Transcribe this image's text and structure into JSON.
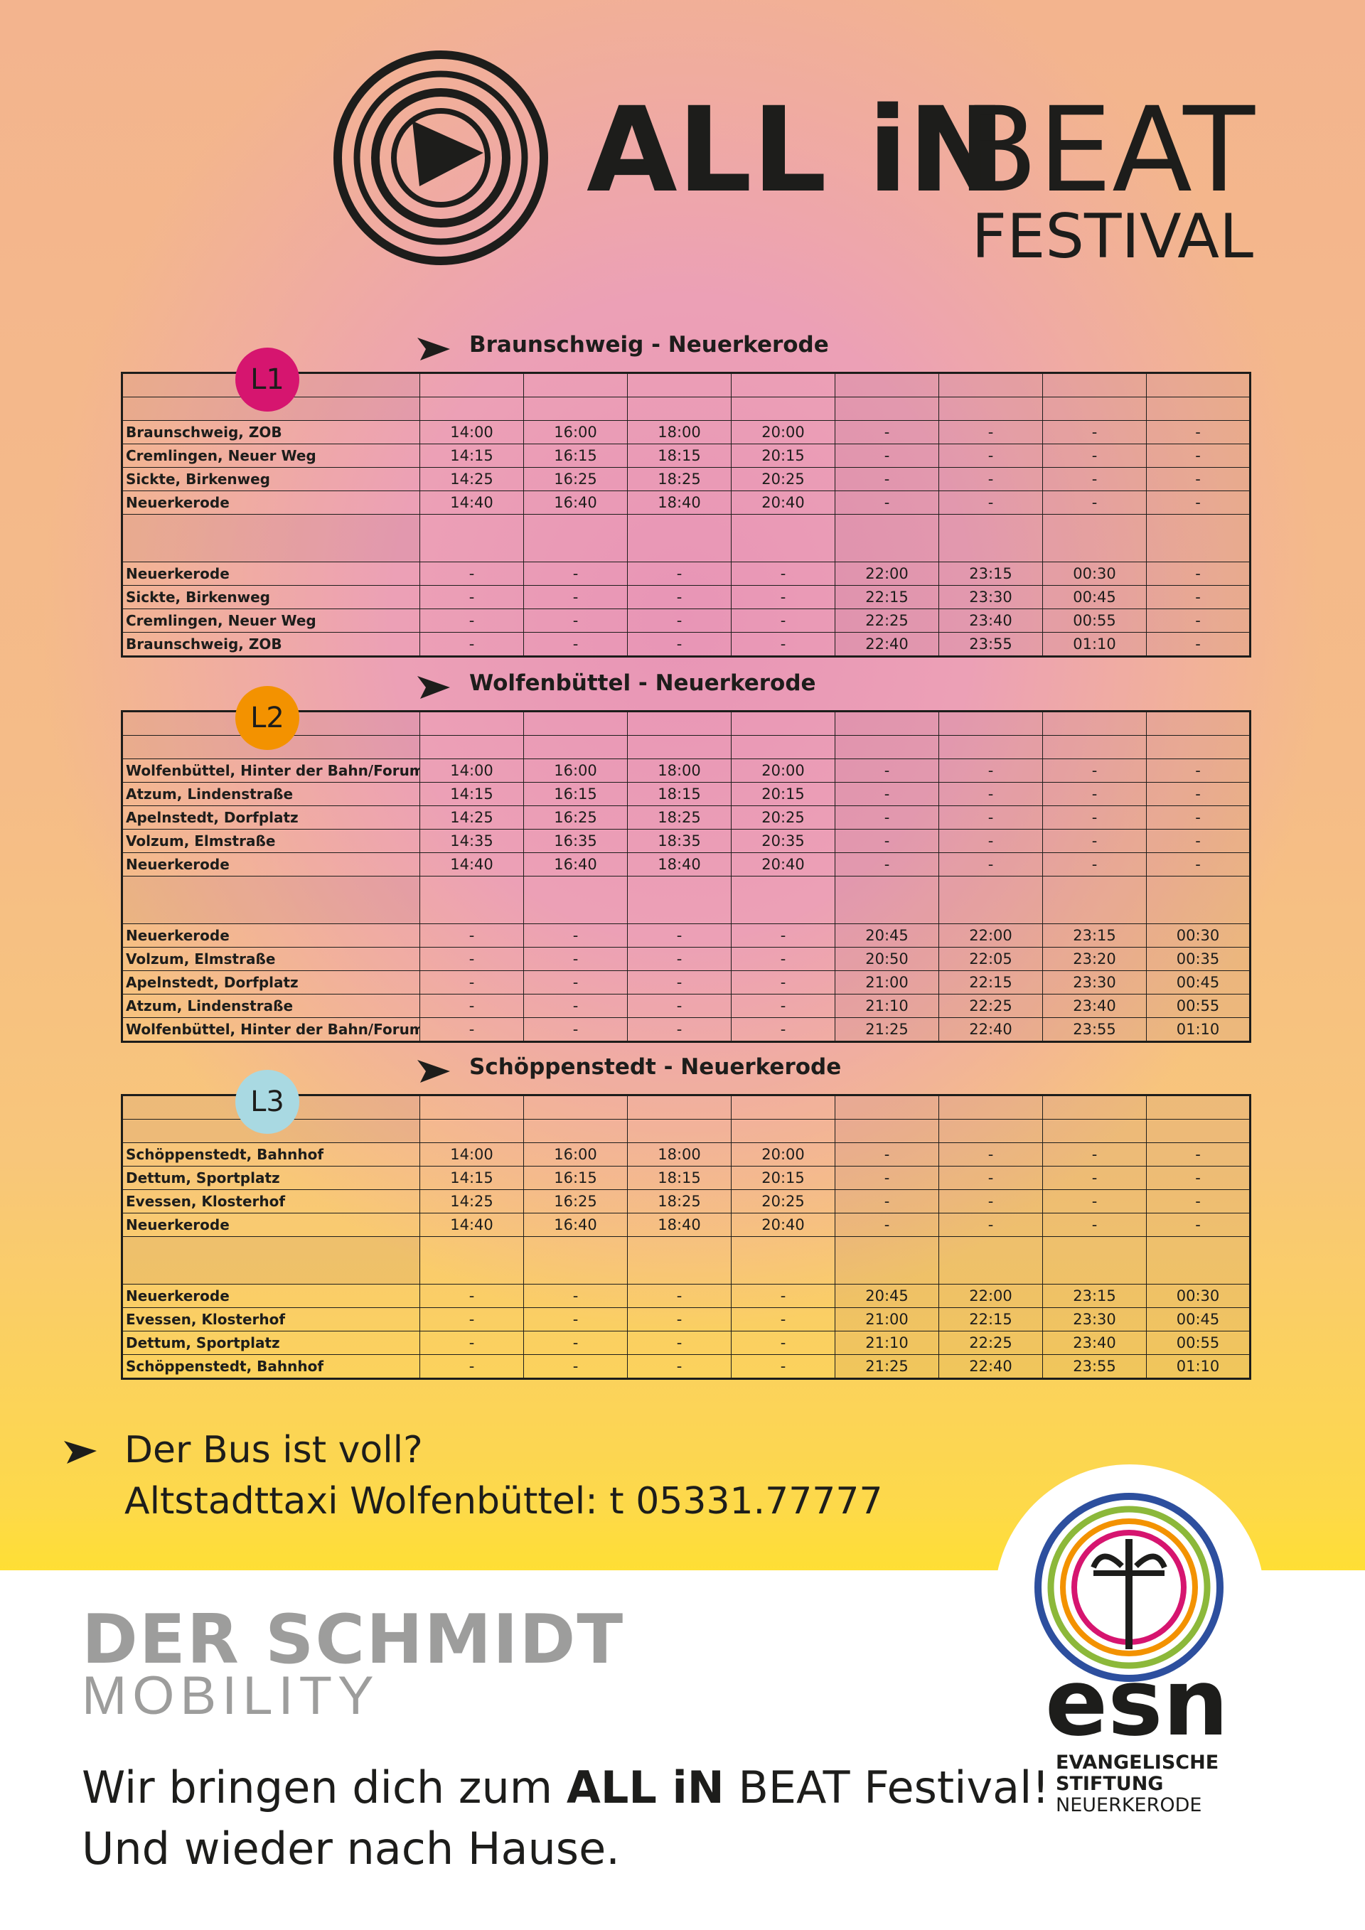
{
  "header": {
    "title_bold": "ALL iN",
    "title_light": "BEAT",
    "subtitle": "FESTIVAL"
  },
  "timetables": [
    {
      "line": "L1",
      "route": "Braunschweig - Neuerkerode",
      "outbound": [
        {
          "stop": "Braunschweig, ZOB",
          "times": [
            "14:00",
            "16:00",
            "18:00",
            "20:00",
            "-",
            "-",
            "-",
            "-"
          ]
        },
        {
          "stop": "Cremlingen, Neuer Weg",
          "times": [
            "14:15",
            "16:15",
            "18:15",
            "20:15",
            "-",
            "-",
            "-",
            "-"
          ]
        },
        {
          "stop": "Sickte, Birkenweg",
          "times": [
            "14:25",
            "16:25",
            "18:25",
            "20:25",
            "-",
            "-",
            "-",
            "-"
          ]
        },
        {
          "stop": "Neuerkerode",
          "times": [
            "14:40",
            "16:40",
            "18:40",
            "20:40",
            "-",
            "-",
            "-",
            "-"
          ]
        }
      ],
      "return": [
        {
          "stop": "Neuerkerode",
          "times": [
            "-",
            "-",
            "-",
            "-",
            "22:00",
            "23:15",
            "00:30",
            "-"
          ]
        },
        {
          "stop": "Sickte, Birkenweg",
          "times": [
            "-",
            "-",
            "-",
            "-",
            "22:15",
            "23:30",
            "00:45",
            "-"
          ]
        },
        {
          "stop": "Cremlingen, Neuer Weg",
          "times": [
            "-",
            "-",
            "-",
            "-",
            "22:25",
            "23:40",
            "00:55",
            "-"
          ]
        },
        {
          "stop": "Braunschweig, ZOB",
          "times": [
            "-",
            "-",
            "-",
            "-",
            "22:40",
            "23:55",
            "01:10",
            "-"
          ]
        }
      ]
    },
    {
      "line": "L2",
      "route": "Wolfenbüttel - Neuerkerode",
      "outbound": [
        {
          "stop": "Wolfenbüttel, Hinter der Bahn/Forum",
          "times": [
            "14:00",
            "16:00",
            "18:00",
            "20:00",
            "-",
            "-",
            "-",
            "-"
          ]
        },
        {
          "stop": "Atzum, Lindenstraße",
          "times": [
            "14:15",
            "16:15",
            "18:15",
            "20:15",
            "-",
            "-",
            "-",
            "-"
          ]
        },
        {
          "stop": "Apelnstedt, Dorfplatz",
          "times": [
            "14:25",
            "16:25",
            "18:25",
            "20:25",
            "-",
            "-",
            "-",
            "-"
          ]
        },
        {
          "stop": "Volzum, Elmstraße",
          "times": [
            "14:35",
            "16:35",
            "18:35",
            "20:35",
            "-",
            "-",
            "-",
            "-"
          ]
        },
        {
          "stop": "Neuerkerode",
          "times": [
            "14:40",
            "16:40",
            "18:40",
            "20:40",
            "-",
            "-",
            "-",
            "-"
          ]
        }
      ],
      "return": [
        {
          "stop": "Neuerkerode",
          "times": [
            "-",
            "-",
            "-",
            "-",
            "20:45",
            "22:00",
            "23:15",
            "00:30"
          ]
        },
        {
          "stop": "Volzum, Elmstraße",
          "times": [
            "-",
            "-",
            "-",
            "-",
            "20:50",
            "22:05",
            "23:20",
            "00:35"
          ]
        },
        {
          "stop": "Apelnstedt, Dorfplatz",
          "times": [
            "-",
            "-",
            "-",
            "-",
            "21:00",
            "22:15",
            "23:30",
            "00:45"
          ]
        },
        {
          "stop": "Atzum, Lindenstraße",
          "times": [
            "-",
            "-",
            "-",
            "-",
            "21:10",
            "22:25",
            "23:40",
            "00:55"
          ]
        },
        {
          "stop": "Wolfenbüttel, Hinter der Bahn/Forum",
          "times": [
            "-",
            "-",
            "-",
            "-",
            "21:25",
            "22:40",
            "23:55",
            "01:10"
          ]
        }
      ]
    },
    {
      "line": "L3",
      "route": "Schöppenstedt - Neuerkerode",
      "outbound": [
        {
          "stop": "Schöppenstedt, Bahnhof",
          "times": [
            "14:00",
            "16:00",
            "18:00",
            "20:00",
            "-",
            "-",
            "-",
            "-"
          ]
        },
        {
          "stop": "Dettum, Sportplatz",
          "times": [
            "14:15",
            "16:15",
            "18:15",
            "20:15",
            "-",
            "-",
            "-",
            "-"
          ]
        },
        {
          "stop": "Evessen, Klosterhof",
          "times": [
            "14:25",
            "16:25",
            "18:25",
            "20:25",
            "-",
            "-",
            "-",
            "-"
          ]
        },
        {
          "stop": "Neuerkerode",
          "times": [
            "14:40",
            "16:40",
            "18:40",
            "20:40",
            "-",
            "-",
            "-",
            "-"
          ]
        }
      ],
      "return": [
        {
          "stop": "Neuerkerode",
          "times": [
            "-",
            "-",
            "-",
            "-",
            "20:45",
            "22:00",
            "23:15",
            "00:30"
          ]
        },
        {
          "stop": "Evessen, Klosterhof",
          "times": [
            "-",
            "-",
            "-",
            "-",
            "21:00",
            "22:15",
            "23:30",
            "00:45"
          ]
        },
        {
          "stop": "Dettum, Sportplatz",
          "times": [
            "-",
            "-",
            "-",
            "-",
            "21:10",
            "22:25",
            "23:40",
            "00:55"
          ]
        },
        {
          "stop": "Schöppenstedt, Bahnhof",
          "times": [
            "-",
            "-",
            "-",
            "-",
            "21:25",
            "22:40",
            "23:55",
            "01:10"
          ]
        }
      ]
    }
  ],
  "notice": {
    "line1": "Der Bus ist voll?",
    "line2": "Altstadttaxi Wolfenbüttel: t 05331.77777"
  },
  "sponsor": {
    "name": "DER SCHMIDT",
    "sub": "MOBILITY"
  },
  "tagline": {
    "prefix": "Wir bringen dich zum",
    "brand": "ALL iN",
    "suffix": "BEAT Festival!",
    "line2": "Und wieder nach Hause."
  },
  "esn": {
    "abbr": "esn",
    "line1": "EVANGELISCHE",
    "line2": "STIFTUNG",
    "line3": "NEUERKERODE"
  }
}
